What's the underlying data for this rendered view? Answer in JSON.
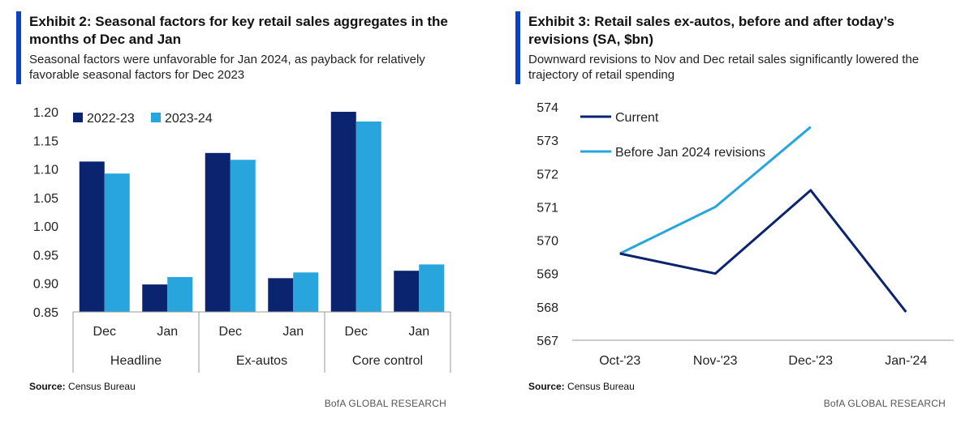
{
  "colors": {
    "navy": "#0b2470",
    "light_blue": "#27a5dc",
    "accent": "#0a42c2",
    "axis": "#999999"
  },
  "left": {
    "title": "Exhibit 2: Seasonal factors for key retail sales aggregates in the months of Dec and Jan",
    "subtitle": "Seasonal factors were unfavorable for Jan 2024, as payback for relatively favorable seasonal factors for Dec 2023",
    "source_label": "Source:",
    "source_text": "Census Bureau",
    "brand": "BofA GLOBAL RESEARCH"
  },
  "right": {
    "title": "Exhibit 3: Retail sales ex-autos, before and after today’s revisions (SA, $bn)",
    "subtitle": "Downward revisions to Nov and Dec retail sales significantly lowered the trajectory of retail spending",
    "source_label": "Source:",
    "source_text": "Census Bureau",
    "brand": "BofA GLOBAL RESEARCH"
  },
  "chart_data": [
    {
      "type": "bar",
      "groups": [
        "Headline",
        "Ex-autos",
        "Core control"
      ],
      "categories": [
        "Dec",
        "Jan",
        "Dec",
        "Jan",
        "Dec",
        "Jan"
      ],
      "series": [
        {
          "name": "2022-23",
          "color": "#0b2470",
          "values": [
            1.113,
            0.898,
            1.128,
            0.909,
            1.2,
            0.922
          ]
        },
        {
          "name": "2023-24",
          "color": "#27a5dc",
          "values": [
            1.092,
            0.911,
            1.116,
            0.919,
            1.183,
            0.933
          ]
        }
      ],
      "ylim": [
        0.85,
        1.2
      ],
      "yticks": [
        "0.85",
        "0.90",
        "0.95",
        "1.00",
        "1.05",
        "1.10",
        "1.15",
        "1.20"
      ],
      "legend": "top-left",
      "grid": false
    },
    {
      "type": "line",
      "x": [
        "Oct-'23",
        "Nov-'23",
        "Dec-'23",
        "Jan-'24"
      ],
      "series": [
        {
          "name": "Current",
          "color": "#0b2470",
          "values": [
            569.6,
            569.0,
            571.5,
            567.85
          ]
        },
        {
          "name": "Before Jan 2024 revisions",
          "color": "#27a5dc",
          "values": [
            569.6,
            571.0,
            573.4,
            null
          ]
        }
      ],
      "ylim": [
        567,
        574
      ],
      "yticks": [
        "567",
        "568",
        "569",
        "570",
        "571",
        "572",
        "573",
        "574"
      ],
      "legend": "top-left",
      "grid": false
    }
  ]
}
